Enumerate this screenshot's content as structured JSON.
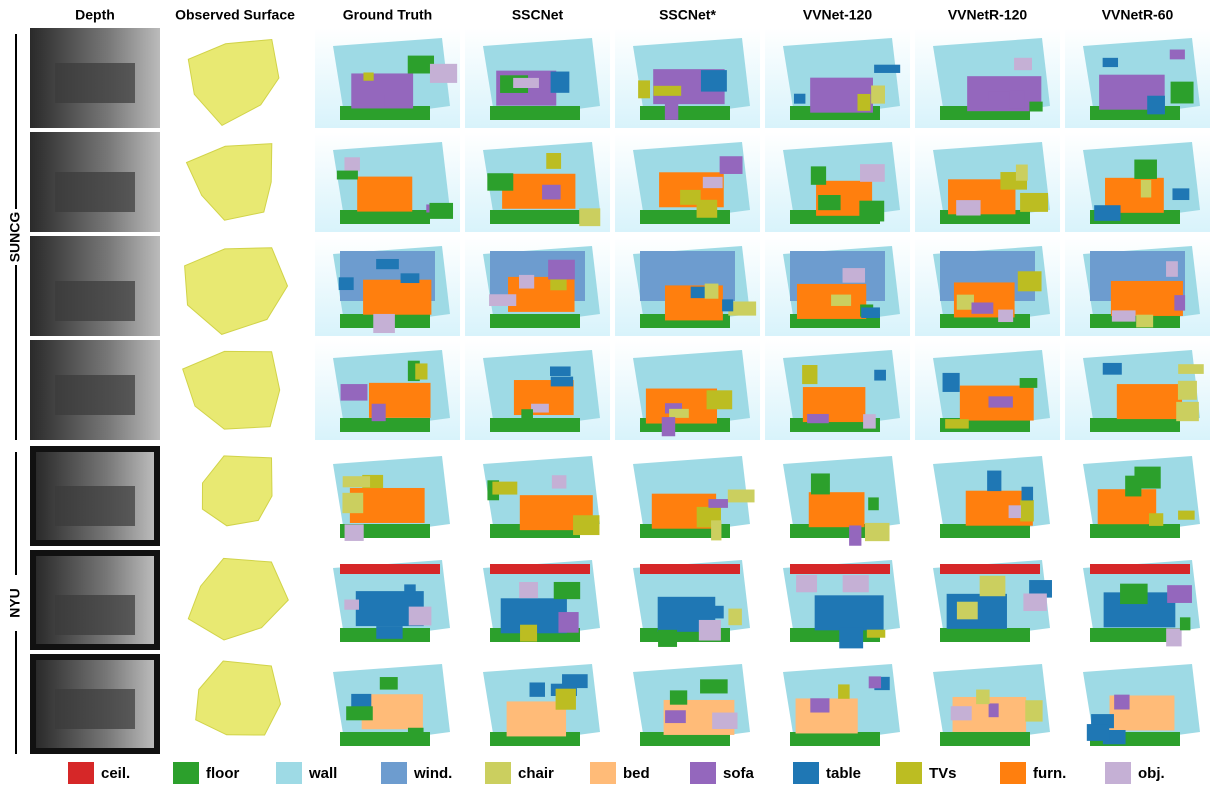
{
  "figure": {
    "columns": [
      "Depth",
      "Observed Surface",
      "Ground Truth",
      "SSCNet",
      "SSCNet*",
      "VVNet-120",
      "VVNetR-120",
      "VVNetR-60"
    ],
    "groups": [
      {
        "label": "SUNCG",
        "rows": 4
      },
      {
        "label": "NYU",
        "rows": 3
      }
    ],
    "legend": [
      {
        "label": "ceil.",
        "color": "#d62728"
      },
      {
        "label": "floor",
        "color": "#2ca02c"
      },
      {
        "label": "wall",
        "color": "#9edae5"
      },
      {
        "label": "wind.",
        "color": "#6d9ccf"
      },
      {
        "label": "chair",
        "color": "#cbcf5f"
      },
      {
        "label": "bed",
        "color": "#ffbb78"
      },
      {
        "label": "sofa",
        "color": "#9467bd"
      },
      {
        "label": "table",
        "color": "#1f77b4"
      },
      {
        "label": "TVs",
        "color": "#bcbd22"
      },
      {
        "label": "furn.",
        "color": "#ff7f0e"
      },
      {
        "label": "obj.",
        "color": "#c5b0d5"
      }
    ]
  }
}
